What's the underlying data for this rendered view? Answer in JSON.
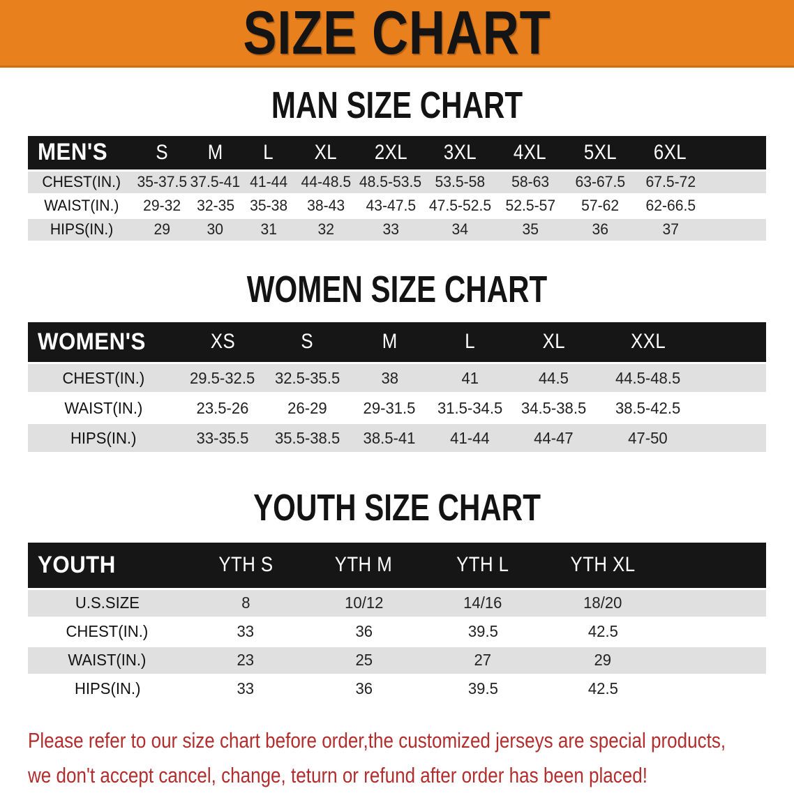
{
  "banner": {
    "title": "SIZE CHART"
  },
  "colors": {
    "banner_bg": "#E8801E",
    "table_header_bg": "#161616",
    "row_alt_gray": "#E0E0E0",
    "note_red": "#B22E2E",
    "heading_black": "#131313"
  },
  "sections": {
    "men": {
      "heading": "MAN SIZE CHART"
    },
    "women": {
      "heading": "WOMEN SIZE CHART"
    },
    "youth": {
      "heading": "YOUTH SIZE CHART"
    }
  },
  "tables": {
    "men": {
      "label": "MEN'S",
      "sizes": [
        "S",
        "M",
        "L",
        "XL",
        "2XL",
        "3XL",
        "4XL",
        "5XL",
        "6XL"
      ],
      "rows": [
        {
          "label": "CHEST(IN.)",
          "values": [
            "35-37.5",
            "37.5-41",
            "41-44",
            "44-48.5",
            "48.5-53.5",
            "53.5-58",
            "58-63",
            "63-67.5",
            "67.5-72"
          ]
        },
        {
          "label": "WAIST(IN.)",
          "values": [
            "29-32",
            "32-35",
            "35-38",
            "38-43",
            "43-47.5",
            "47.5-52.5",
            "52.5-57",
            "57-62",
            "62-66.5"
          ]
        },
        {
          "label": "HIPS(IN.)",
          "values": [
            "29",
            "30",
            "31",
            "32",
            "33",
            "34",
            "35",
            "36",
            "37"
          ]
        }
      ]
    },
    "women": {
      "label": "WOMEN'S",
      "sizes": [
        "XS",
        "S",
        "M",
        "L",
        "XL",
        "XXL"
      ],
      "rows": [
        {
          "label": "CHEST(IN.)",
          "values": [
            "29.5-32.5",
            "32.5-35.5",
            "38",
            "41",
            "44.5",
            "44.5-48.5"
          ]
        },
        {
          "label": "WAIST(IN.)",
          "values": [
            "23.5-26",
            "26-29",
            "29-31.5",
            "31.5-34.5",
            "34.5-38.5",
            "38.5-42.5"
          ]
        },
        {
          "label": "HIPS(IN.)",
          "values": [
            "33-35.5",
            "35.5-38.5",
            "38.5-41",
            "41-44",
            "44-47",
            "47-50"
          ]
        }
      ]
    },
    "youth": {
      "label": "YOUTH",
      "sizes": [
        "YTH S",
        "YTH M",
        "YTH L",
        "YTH XL"
      ],
      "rows": [
        {
          "label": "U.S.SIZE",
          "values": [
            "8",
            "10/12",
            "14/16",
            "18/20"
          ]
        },
        {
          "label": "CHEST(IN.)",
          "values": [
            "33",
            "36",
            "39.5",
            "42.5"
          ]
        },
        {
          "label": "WAIST(IN.)",
          "values": [
            "23",
            "25",
            "27",
            "29"
          ]
        },
        {
          "label": "HIPS(IN.)",
          "values": [
            "33",
            "36",
            "39.5",
            "42.5"
          ]
        }
      ]
    }
  },
  "note": {
    "line1": "Please refer to our size chart before order,the customized jerseys are special products,",
    "line2": "we don't accept cancel, change, teturn or refund after order has been placed!"
  }
}
